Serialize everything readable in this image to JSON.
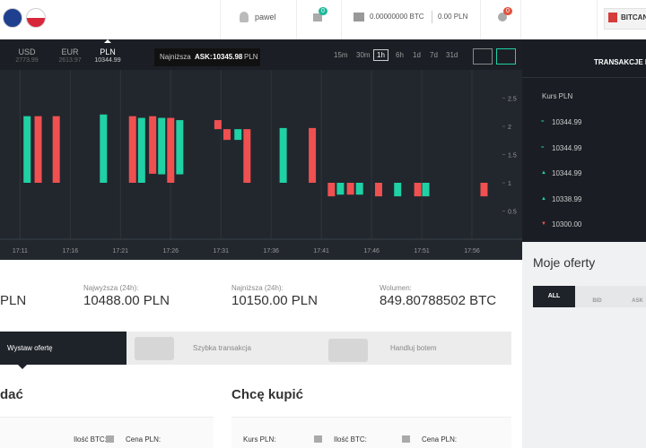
{
  "topbar": {
    "user": "pawel",
    "notifications": "0",
    "btc_balance": "0.00000000 BTC",
    "pln_balance": "0.00 PLN",
    "alerts": "0",
    "brand": "BITCAN"
  },
  "currencies": [
    {
      "code": "USD",
      "rate": "2773.99"
    },
    {
      "code": "EUR",
      "rate": "2613.97"
    },
    {
      "code": "PLN",
      "rate": "10344.99"
    }
  ],
  "lowest_ask": {
    "label": "Najniższa",
    "name": "ASK:",
    "value": "10345.98",
    "unit": "PLN"
  },
  "intervals": [
    "15m",
    "30m",
    "1h",
    "6h",
    "1d",
    "7d",
    "31d"
  ],
  "price_chart": {
    "type": "candlestick",
    "xlim": [
      9,
      61
    ],
    "xticks": [
      {
        "value": 11,
        "label": "17:11"
      },
      {
        "value": 16,
        "label": "17:16"
      },
      {
        "value": 21,
        "label": "17:21"
      },
      {
        "value": 26,
        "label": "17:26"
      },
      {
        "value": 31,
        "label": "17:31"
      },
      {
        "value": 36,
        "label": "17:36"
      },
      {
        "value": 41,
        "label": "17:41"
      },
      {
        "value": 46,
        "label": "17:46"
      },
      {
        "value": 51,
        "label": "17:51"
      },
      {
        "value": 56,
        "label": "17:56"
      }
    ],
    "ylim": [
      0,
      3
    ],
    "yticks": [
      0.5,
      1,
      1.5,
      2,
      2.5
    ],
    "up_color": "#1fd1a5",
    "down_color": "#f05050",
    "candles": [
      {
        "x": 11.7,
        "open": 1.0,
        "close": 2.18
      },
      {
        "x": 12.8,
        "open": 2.18,
        "close": 1.0
      },
      {
        "x": 14.6,
        "open": 2.18,
        "close": 1.0
      },
      {
        "x": 19.3,
        "open": 1.0,
        "close": 2.21
      },
      {
        "x": 22.2,
        "open": 2.18,
        "close": 1.0
      },
      {
        "x": 23.1,
        "open": 1.0,
        "close": 2.15
      },
      {
        "x": 24.2,
        "open": 2.18,
        "close": 1.16
      },
      {
        "x": 25.1,
        "open": 1.15,
        "close": 2.15
      },
      {
        "x": 26.0,
        "open": 2.15,
        "close": 1.0
      },
      {
        "x": 26.9,
        "open": 1.15,
        "close": 2.11
      },
      {
        "x": 30.7,
        "open": 2.11,
        "close": 1.95
      },
      {
        "x": 31.6,
        "open": 1.95,
        "close": 1.76
      },
      {
        "x": 32.7,
        "open": 1.76,
        "close": 1.95
      },
      {
        "x": 33.6,
        "open": 1.95,
        "close": 1.0
      },
      {
        "x": 37.2,
        "open": 1.0,
        "close": 1.97
      },
      {
        "x": 40.1,
        "open": 1.97,
        "close": 1.0
      },
      {
        "x": 42.0,
        "open": 1.0,
        "close": 0.76
      },
      {
        "x": 42.9,
        "open": 0.79,
        "close": 1.0
      },
      {
        "x": 43.9,
        "open": 1.0,
        "close": 0.79
      },
      {
        "x": 44.8,
        "open": 0.79,
        "close": 1.0
      },
      {
        "x": 46.7,
        "open": 1.0,
        "close": 0.76
      },
      {
        "x": 48.6,
        "open": 0.76,
        "close": 1.0
      },
      {
        "x": 50.6,
        "open": 1.0,
        "close": 0.76
      },
      {
        "x": 51.4,
        "open": 0.76,
        "close": 1.0
      },
      {
        "x": 57.2,
        "open": 1.0,
        "close": 0.76
      }
    ]
  },
  "trades": {
    "title": "TRANSAKCJE NA",
    "column": "Kurs PLN",
    "rows": [
      "10344.99",
      "10344.99",
      "10344.99",
      "10338.99",
      "10300.00"
    ]
  },
  "stats": {
    "last": "PLN",
    "items": [
      {
        "label": "Najwyższa (24h):",
        "value": "10488.00 PLN"
      },
      {
        "label": "Najniższa (24h):",
        "value": "10150.00 PLN"
      },
      {
        "label": "Wolumen:",
        "value": "849.80788502 BTC"
      }
    ]
  },
  "tabs": [
    "Wystaw ofertę",
    "Szybka transakcja",
    "Handluj botem"
  ],
  "sell": {
    "title": "dać",
    "fields": [
      "Ilość BTC:",
      "Cena PLN:"
    ]
  },
  "buy": {
    "title": "Chcę kupić",
    "fields": [
      "Kurs PLN:",
      "Ilość BTC:",
      "Cena PLN:"
    ]
  },
  "my_offers": {
    "title": "Moje oferty",
    "filters": [
      "ALL",
      "BID",
      "ASK"
    ]
  }
}
